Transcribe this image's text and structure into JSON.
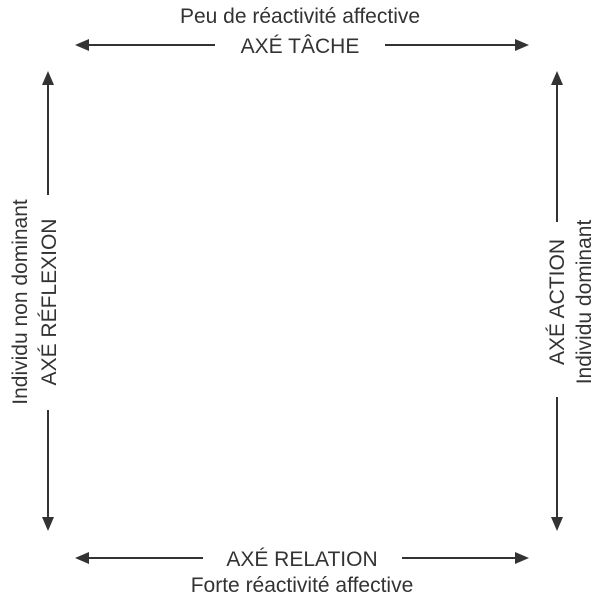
{
  "top": {
    "axis_label": "AXÉ TÂCHE",
    "descriptor": "Peu de réactivité affective"
  },
  "bottom": {
    "axis_label": "AXÉ RELATION",
    "descriptor": "Forte réactivité affective"
  },
  "left": {
    "axis_label": "AXÉ RÉFLEXION",
    "descriptor": "Individu non dominant"
  },
  "right": {
    "axis_label": "AXÉ ACTION",
    "descriptor": "Individu dominant"
  },
  "colors": {
    "ink": "#333333",
    "background": "#ffffff"
  }
}
